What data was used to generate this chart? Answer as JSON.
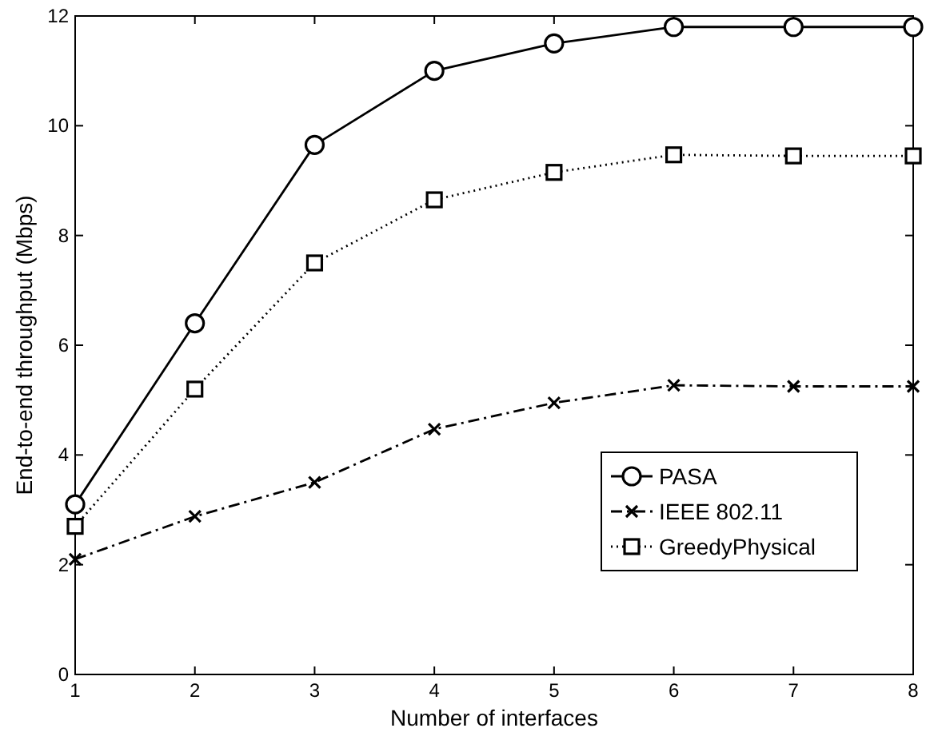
{
  "chart_data": {
    "type": "line",
    "xlabel": "Number of interfaces",
    "ylabel": "End-to-end throughput (Mbps)",
    "x": [
      1,
      2,
      3,
      4,
      5,
      6,
      7,
      8
    ],
    "xlim": [
      1,
      8
    ],
    "xticks": [
      1,
      2,
      3,
      4,
      5,
      6,
      7,
      8
    ],
    "ylim": [
      0,
      12
    ],
    "yticks": [
      0,
      2,
      4,
      6,
      8,
      10,
      12
    ],
    "grid": false,
    "legend": "bottom right",
    "series": [
      {
        "name": "PASA",
        "color": "#000000",
        "marker": "circle",
        "line_style": "solid",
        "values": [
          3.1,
          6.4,
          9.65,
          11.0,
          11.5,
          11.8,
          11.8,
          11.8
        ]
      },
      {
        "name": "IEEE 802.11",
        "color": "#000000",
        "marker": "cross",
        "line_style": "dashed",
        "values": [
          2.1,
          2.88,
          3.5,
          4.47,
          4.95,
          5.27,
          5.25,
          5.25
        ]
      },
      {
        "name": "GreedyPhysical",
        "color": "#000000",
        "marker": "square",
        "line_style": "dotted",
        "values": [
          2.7,
          5.2,
          7.5,
          8.65,
          9.15,
          9.47,
          9.45,
          9.45
        ]
      }
    ]
  }
}
